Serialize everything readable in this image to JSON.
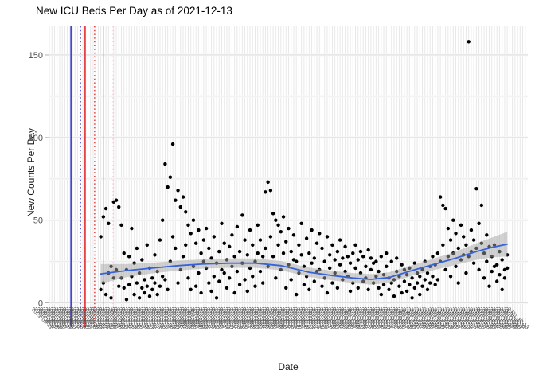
{
  "title": "New ICU Beds Per Day as of 2021-12-13",
  "x_axis": {
    "label": "Date",
    "first_date": "2021-06-11",
    "last_date": "2021-12-13",
    "tick_interval_days": 1,
    "tick_label_rotation_deg": 45
  },
  "y_axis": {
    "label": "New Counts Per Day",
    "major_ticks": [
      0,
      50,
      100,
      150
    ],
    "minor_gridlines": [
      25,
      75,
      125
    ]
  },
  "chart_data": {
    "type": "scatter",
    "title": "New ICU Beds Per Day as of 2021-12-13",
    "xlabel": "Date",
    "ylabel": "New Counts Per Day",
    "x_unit": "day index from 2021-06-11",
    "x_domain_days": [
      0,
      185
    ],
    "ylim": [
      0,
      167
    ],
    "grid": true,
    "legend": false,
    "points": [
      [
        20,
        40
      ],
      [
        20,
        8
      ],
      [
        21,
        52
      ],
      [
        21,
        12
      ],
      [
        22,
        57
      ],
      [
        22,
        5
      ],
      [
        23,
        48
      ],
      [
        23,
        18
      ],
      [
        24,
        22
      ],
      [
        24,
        3
      ],
      [
        25,
        61
      ],
      [
        25,
        15
      ],
      [
        26,
        62
      ],
      [
        26,
        20
      ],
      [
        27,
        58
      ],
      [
        27,
        10
      ],
      [
        28,
        47
      ],
      [
        28,
        15
      ],
      [
        29,
        30
      ],
      [
        29,
        9
      ],
      [
        30,
        20
      ],
      [
        30,
        2
      ],
      [
        31,
        28
      ],
      [
        31,
        11
      ],
      [
        32,
        45
      ],
      [
        32,
        16
      ],
      [
        33,
        24
      ],
      [
        33,
        5
      ],
      [
        34,
        12
      ],
      [
        34,
        33
      ],
      [
        35,
        18
      ],
      [
        35,
        3
      ],
      [
        36,
        26
      ],
      [
        36,
        9
      ],
      [
        37,
        6
      ],
      [
        37,
        14
      ],
      [
        38,
        35
      ],
      [
        38,
        10
      ],
      [
        39,
        4
      ],
      [
        39,
        21
      ],
      [
        40,
        15
      ],
      [
        40,
        8
      ],
      [
        41,
        29
      ],
      [
        41,
        12
      ],
      [
        42,
        5
      ],
      [
        42,
        19
      ],
      [
        43,
        38
      ],
      [
        43,
        10
      ],
      [
        44,
        50
      ],
      [
        44,
        16
      ],
      [
        45,
        84
      ],
      [
        45,
        14
      ],
      [
        46,
        70
      ],
      [
        46,
        8
      ],
      [
        47,
        76
      ],
      [
        47,
        25
      ],
      [
        48,
        96
      ],
      [
        48,
        40
      ],
      [
        49,
        62
      ],
      [
        49,
        33
      ],
      [
        50,
        68
      ],
      [
        50,
        12
      ],
      [
        51,
        58
      ],
      [
        51,
        20
      ],
      [
        52,
        64
      ],
      [
        52,
        28
      ],
      [
        53,
        55
      ],
      [
        53,
        35
      ],
      [
        54,
        47
      ],
      [
        54,
        15
      ],
      [
        55,
        42
      ],
      [
        55,
        8
      ],
      [
        56,
        50
      ],
      [
        56,
        22
      ],
      [
        57,
        36
      ],
      [
        57,
        10
      ],
      [
        58,
        44
      ],
      [
        58,
        18
      ],
      [
        59,
        30
      ],
      [
        59,
        6
      ],
      [
        60,
        38
      ],
      [
        60,
        25
      ],
      [
        61,
        45
      ],
      [
        61,
        21
      ],
      [
        62,
        33
      ],
      [
        62,
        12
      ],
      [
        63,
        27
      ],
      [
        63,
        7
      ],
      [
        64,
        40
      ],
      [
        64,
        16
      ],
      [
        65,
        24
      ],
      [
        65,
        3
      ],
      [
        66,
        31
      ],
      [
        66,
        13
      ],
      [
        67,
        48
      ],
      [
        67,
        20
      ],
      [
        68,
        18
      ],
      [
        68,
        36
      ],
      [
        69,
        26
      ],
      [
        69,
        9
      ],
      [
        70,
        34
      ],
      [
        70,
        15
      ],
      [
        71,
        22
      ],
      [
        71,
        41
      ],
      [
        72,
        28
      ],
      [
        72,
        6
      ],
      [
        73,
        46
      ],
      [
        73,
        19
      ],
      [
        74,
        31
      ],
      [
        74,
        11
      ],
      [
        75,
        53
      ],
      [
        75,
        24
      ],
      [
        76,
        38
      ],
      [
        76,
        14
      ],
      [
        77,
        29
      ],
      [
        77,
        7
      ],
      [
        78,
        44
      ],
      [
        78,
        21
      ],
      [
        79,
        35
      ],
      [
        79,
        16
      ],
      [
        80,
        25
      ],
      [
        80,
        10
      ],
      [
        81,
        47
      ],
      [
        81,
        30
      ],
      [
        82,
        19
      ],
      [
        82,
        38
      ],
      [
        83,
        28
      ],
      [
        83,
        12
      ],
      [
        84,
        67
      ],
      [
        84,
        33
      ],
      [
        85,
        73
      ],
      [
        85,
        22
      ],
      [
        86,
        68
      ],
      [
        86,
        40
      ],
      [
        87,
        54
      ],
      [
        87,
        28
      ],
      [
        88,
        50
      ],
      [
        88,
        15
      ],
      [
        89,
        47
      ],
      [
        89,
        35
      ],
      [
        90,
        43
      ],
      [
        90,
        20
      ],
      [
        91,
        52
      ],
      [
        91,
        30
      ],
      [
        92,
        37
      ],
      [
        92,
        9
      ],
      [
        93,
        45
      ],
      [
        93,
        23
      ],
      [
        94,
        31
      ],
      [
        94,
        14
      ],
      [
        95,
        41
      ],
      [
        95,
        26
      ],
      [
        96,
        25
      ],
      [
        96,
        5
      ],
      [
        97,
        35
      ],
      [
        97,
        18
      ],
      [
        98,
        48
      ],
      [
        98,
        29
      ],
      [
        99,
        22
      ],
      [
        99,
        11
      ],
      [
        100,
        39
      ],
      [
        100,
        16
      ],
      [
        101,
        30
      ],
      [
        101,
        8
      ],
      [
        102,
        44
      ],
      [
        102,
        24
      ],
      [
        103,
        27
      ],
      [
        103,
        13
      ],
      [
        104,
        36
      ],
      [
        104,
        19
      ],
      [
        105,
        20
      ],
      [
        105,
        42
      ],
      [
        106,
        33
      ],
      [
        106,
        10
      ],
      [
        107,
        25
      ],
      [
        107,
        15
      ],
      [
        108,
        40
      ],
      [
        108,
        6
      ],
      [
        109,
        29
      ],
      [
        109,
        21
      ],
      [
        110,
        35
      ],
      [
        110,
        12
      ],
      [
        111,
        18
      ],
      [
        111,
        26
      ],
      [
        112,
        31
      ],
      [
        112,
        9
      ],
      [
        113,
        23
      ],
      [
        113,
        38
      ],
      [
        114,
        27
      ],
      [
        114,
        14
      ],
      [
        115,
        34
      ],
      [
        115,
        19
      ],
      [
        116,
        16
      ],
      [
        116,
        28
      ],
      [
        117,
        24
      ],
      [
        117,
        7
      ],
      [
        118,
        30
      ],
      [
        118,
        12
      ],
      [
        119,
        21
      ],
      [
        119,
        35
      ],
      [
        120,
        26
      ],
      [
        120,
        9
      ],
      [
        121,
        18
      ],
      [
        121,
        31
      ],
      [
        122,
        28
      ],
      [
        122,
        13
      ],
      [
        123,
        15
      ],
      [
        123,
        22
      ],
      [
        124,
        32
      ],
      [
        124,
        8
      ],
      [
        125,
        20
      ],
      [
        125,
        27
      ],
      [
        126,
        12
      ],
      [
        126,
        24
      ],
      [
        127,
        25
      ],
      [
        127,
        16
      ],
      [
        128,
        9
      ],
      [
        128,
        19
      ],
      [
        129,
        28
      ],
      [
        129,
        5
      ],
      [
        130,
        17
      ],
      [
        130,
        11
      ],
      [
        131,
        22
      ],
      [
        131,
        30
      ],
      [
        132,
        8
      ],
      [
        132,
        15
      ],
      [
        133,
        25
      ],
      [
        133,
        12
      ],
      [
        134,
        14
      ],
      [
        134,
        4
      ],
      [
        135,
        19
      ],
      [
        135,
        27
      ],
      [
        136,
        10
      ],
      [
        136,
        16
      ],
      [
        137,
        23
      ],
      [
        137,
        6
      ],
      [
        138,
        13
      ],
      [
        138,
        20
      ],
      [
        139,
        7
      ],
      [
        139,
        17
      ],
      [
        140,
        21
      ],
      [
        140,
        11
      ],
      [
        141,
        15
      ],
      [
        141,
        3
      ],
      [
        142,
        24
      ],
      [
        142,
        9
      ],
      [
        143,
        12
      ],
      [
        143,
        18
      ],
      [
        144,
        5
      ],
      [
        144,
        16
      ],
      [
        145,
        20
      ],
      [
        145,
        10
      ],
      [
        146,
        14
      ],
      [
        146,
        25
      ],
      [
        147,
        8
      ],
      [
        147,
        18
      ],
      [
        148,
        22
      ],
      [
        148,
        12
      ],
      [
        149,
        16
      ],
      [
        149,
        28
      ],
      [
        150,
        11
      ],
      [
        150,
        23
      ],
      [
        151,
        30
      ],
      [
        151,
        14
      ],
      [
        152,
        64
      ],
      [
        152,
        25
      ],
      [
        153,
        59
      ],
      [
        153,
        35
      ],
      [
        154,
        57
      ],
      [
        154,
        20
      ],
      [
        155,
        45
      ],
      [
        155,
        28
      ],
      [
        156,
        38
      ],
      [
        156,
        16
      ],
      [
        157,
        50
      ],
      [
        157,
        30
      ],
      [
        158,
        42
      ],
      [
        158,
        22
      ],
      [
        159,
        33
      ],
      [
        159,
        12
      ],
      [
        160,
        47
      ],
      [
        160,
        26
      ],
      [
        161,
        29
      ],
      [
        161,
        40
      ],
      [
        162,
        35
      ],
      [
        162,
        18
      ],
      [
        163,
        158
      ],
      [
        163,
        28
      ],
      [
        164,
        44
      ],
      [
        164,
        31
      ],
      [
        165,
        38
      ],
      [
        165,
        24
      ],
      [
        166,
        69
      ],
      [
        166,
        33
      ],
      [
        167,
        48
      ],
      [
        167,
        20
      ],
      [
        168,
        59
      ],
      [
        168,
        36
      ],
      [
        169,
        30
      ],
      [
        169,
        15
      ],
      [
        170,
        41
      ],
      [
        170,
        25
      ],
      [
        171,
        34
      ],
      [
        171,
        10
      ],
      [
        172,
        28
      ],
      [
        172,
        19
      ],
      [
        173,
        35
      ],
      [
        173,
        22
      ],
      [
        174,
        23
      ],
      [
        174,
        13
      ],
      [
        175,
        31
      ],
      [
        175,
        17
      ],
      [
        176,
        26
      ],
      [
        176,
        8
      ],
      [
        177,
        20
      ],
      [
        177,
        15
      ],
      [
        178,
        29
      ],
      [
        178,
        21
      ]
    ],
    "smooth_line": [
      [
        20,
        17.5,
        6
      ],
      [
        30,
        19.5,
        4
      ],
      [
        40,
        21,
        3.2
      ],
      [
        50,
        22.5,
        3
      ],
      [
        60,
        23.5,
        2.8
      ],
      [
        70,
        24,
        2.8
      ],
      [
        80,
        24,
        2.8
      ],
      [
        90,
        22.5,
        2.8
      ],
      [
        101,
        18.5,
        2.8
      ],
      [
        110,
        16.5,
        2.9
      ],
      [
        118,
        15,
        3
      ],
      [
        125,
        14.2,
        3.2
      ],
      [
        132,
        15.3,
        3.2
      ],
      [
        142,
        20,
        3.2
      ],
      [
        150,
        23.5,
        3.5
      ],
      [
        158,
        27,
        4
      ],
      [
        166,
        31,
        5
      ],
      [
        172,
        33.5,
        6
      ],
      [
        178,
        35.5,
        7.5
      ]
    ],
    "reference_lines": [
      {
        "day": 8.4,
        "style": "solid",
        "color": "#2222CC"
      },
      {
        "day": 12.1,
        "style": "dotted",
        "color": "#2222CC"
      },
      {
        "day": 13.9,
        "style": "solid",
        "color": "#DD1111"
      },
      {
        "day": 17.6,
        "style": "dotted",
        "color": "#DD1111"
      },
      {
        "day": 21.0,
        "style": "solid",
        "color": "#F2A0B6"
      },
      {
        "day": 24.8,
        "style": "dotted",
        "color": "#F5BCCB"
      }
    ],
    "style": {
      "point_color": "#000000",
      "smooth_color": "#3763D8",
      "ci_color": "rgba(163,163,163,0.49)",
      "grid_color": "#e8e8e8",
      "major_grid_color": "#e0e0e0",
      "minor_grid_color": "#ededed",
      "tick_color": "#cccccc",
      "axis_text_color": "#4d4d4d"
    }
  }
}
